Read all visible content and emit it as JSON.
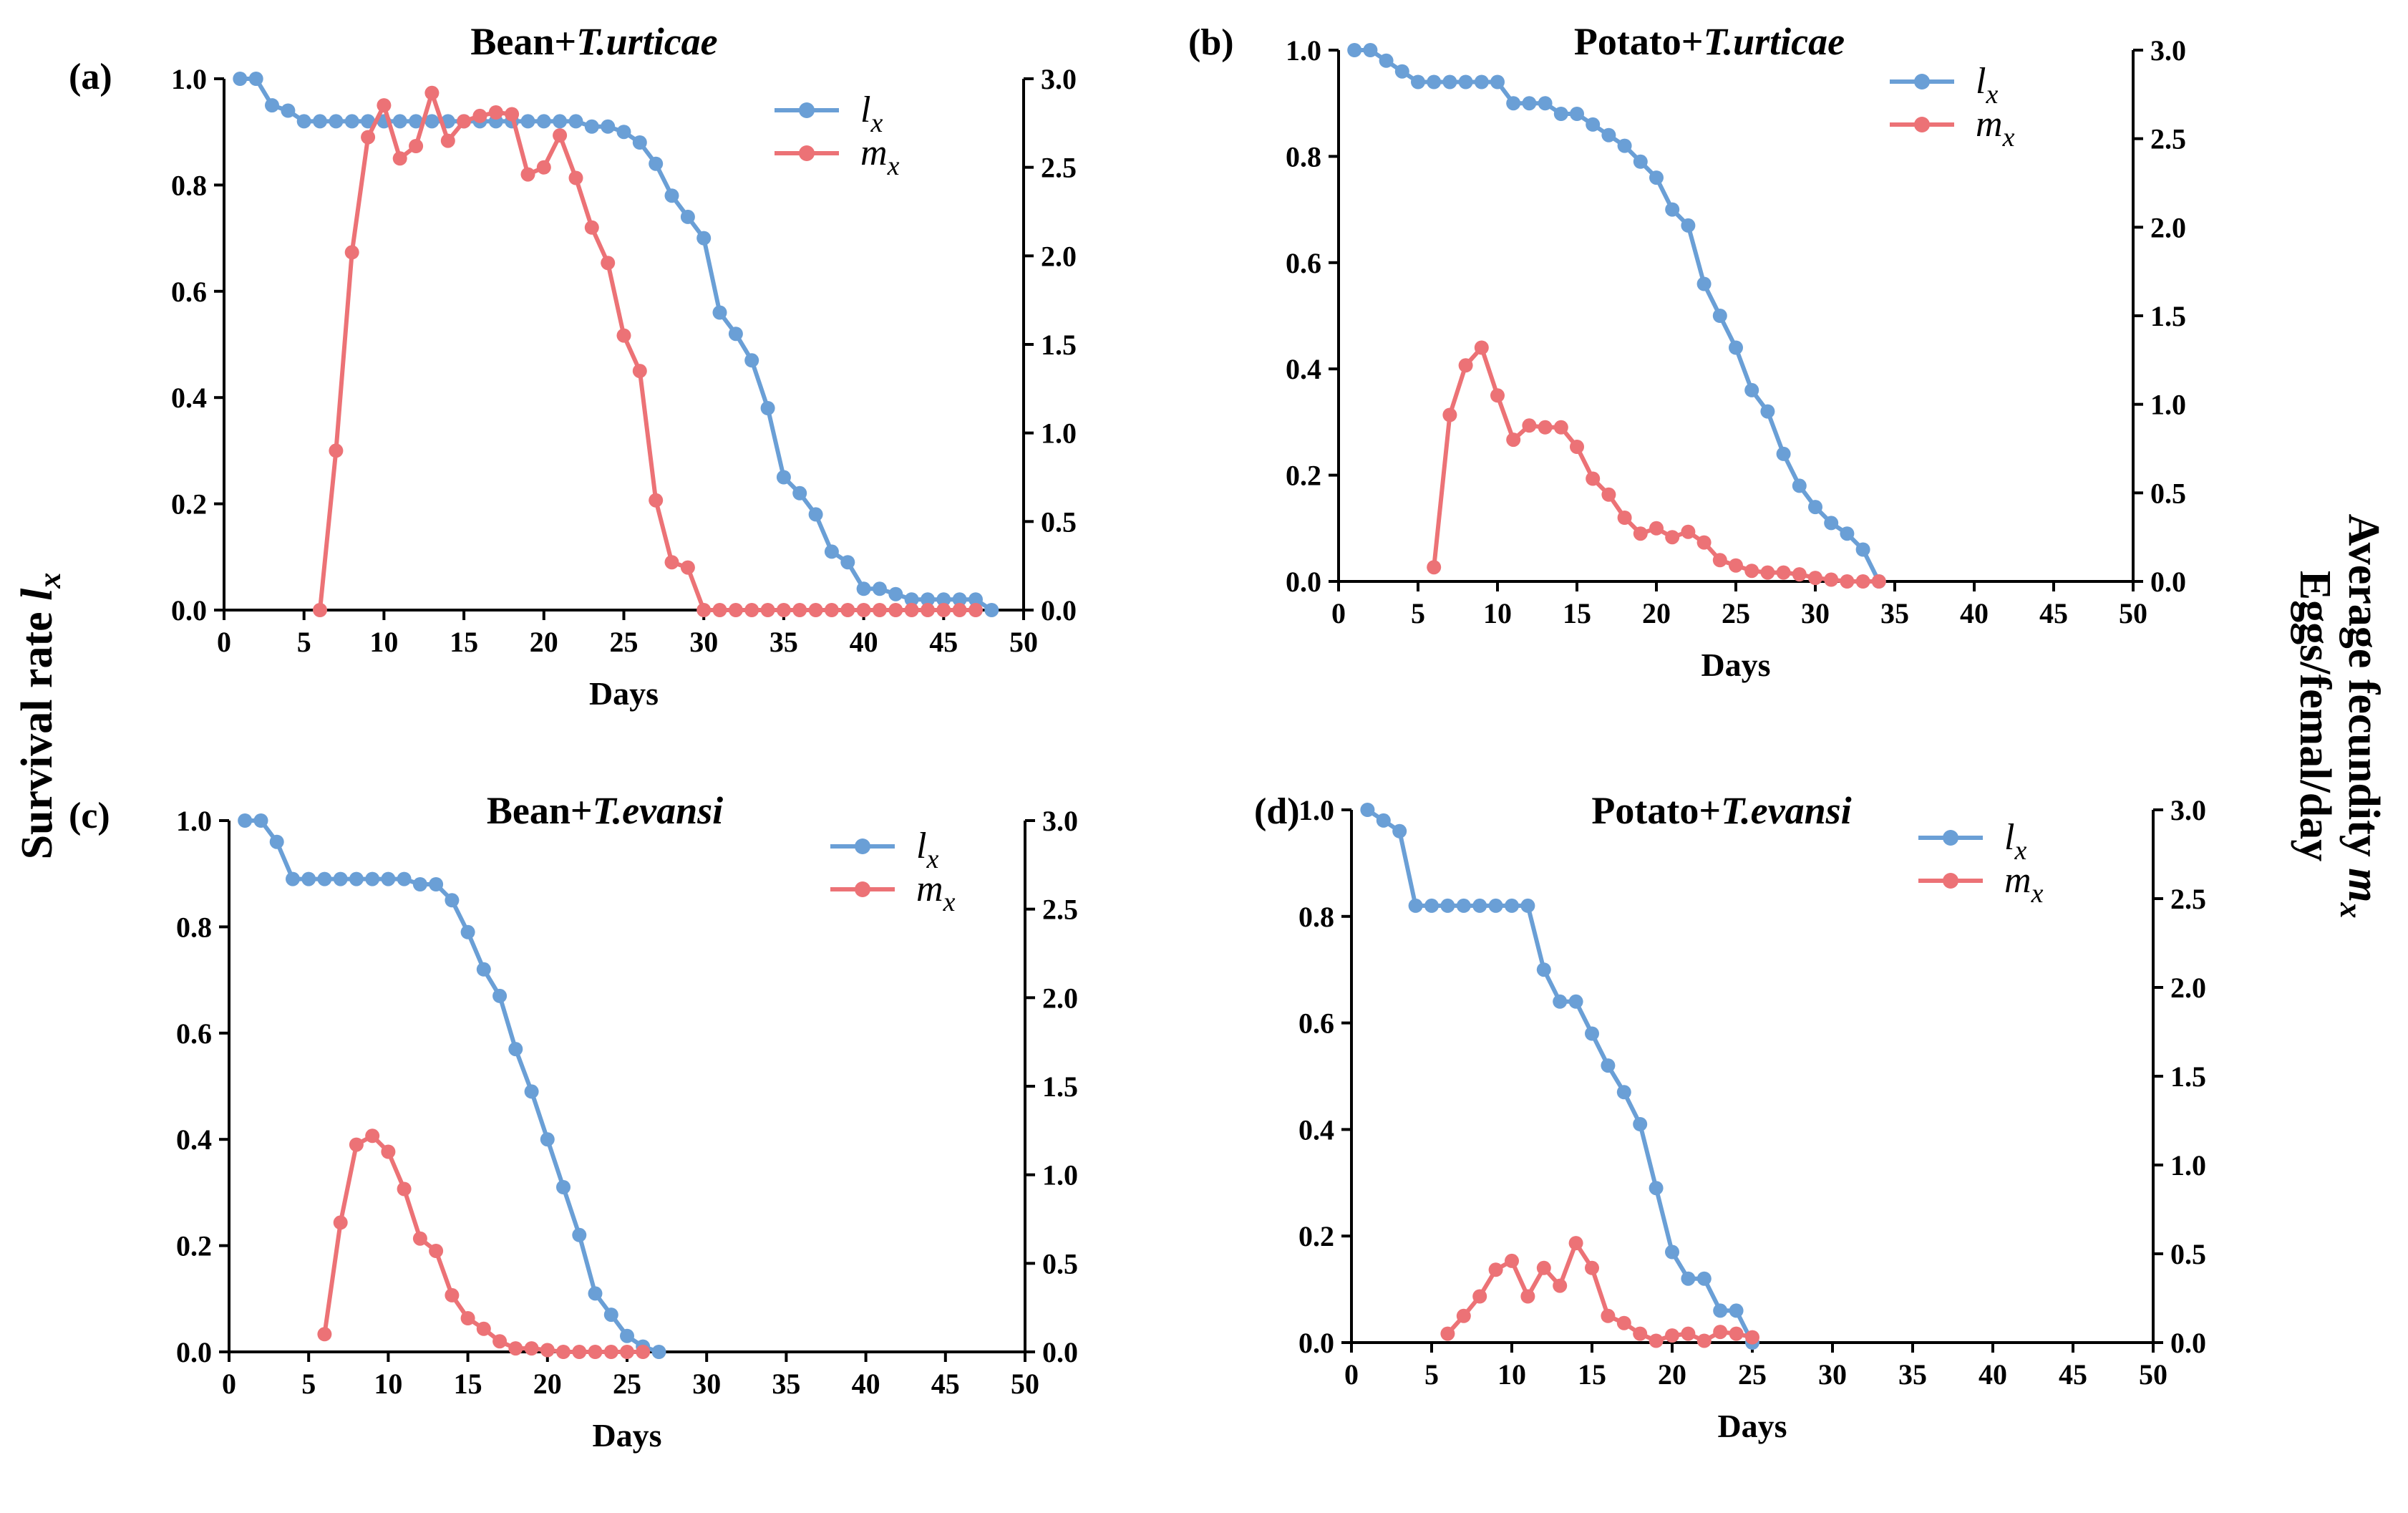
{
  "figure": {
    "left_axis_label": "Survival rate",
    "left_axis_symbol": "l",
    "left_axis_sub": "x",
    "right_axis_label_line1": "Average fecundity",
    "right_axis_symbol": "m",
    "right_axis_sub": "x",
    "right_axis_label_line2": "Eggs/femal/day"
  },
  "colors": {
    "lx": "#6a9fd6",
    "mx": "#ec7276"
  },
  "chart_data": [
    {
      "type": "line",
      "panel_label": "(a)",
      "title_plain": "Bean+",
      "title_italic": "T.urticae",
      "xlabel": "Days",
      "xlim": [
        0,
        50
      ],
      "xticks": [
        "0",
        "5",
        "10",
        "15",
        "20",
        "25",
        "30",
        "35",
        "40",
        "45",
        "50"
      ],
      "ylim_left": [
        0,
        1.0
      ],
      "yticks_left": [
        "0.0",
        "0.2",
        "0.4",
        "0.6",
        "0.8",
        "1.0"
      ],
      "ylim_right": [
        0,
        3.0
      ],
      "yticks_right": [
        "0.0",
        "0.5",
        "1.0",
        "1.5",
        "2.0",
        "2.5",
        "3.0"
      ],
      "legend": [
        {
          "symbol": "l",
          "sub": "x"
        },
        {
          "symbol": "m",
          "sub": "x"
        }
      ],
      "series": [
        {
          "name": "lx",
          "axis": "left",
          "x": [
            1,
            2,
            3,
            4,
            5,
            6,
            7,
            8,
            9,
            10,
            11,
            12,
            13,
            14,
            15,
            16,
            17,
            18,
            19,
            20,
            21,
            22,
            23,
            24,
            25,
            26,
            27,
            28,
            29,
            30,
            31,
            32,
            33,
            34,
            35,
            36,
            37,
            38,
            39,
            40,
            41,
            42,
            43,
            44,
            45,
            46,
            47,
            48
          ],
          "y": [
            1.0,
            1.0,
            0.95,
            0.94,
            0.92,
            0.92,
            0.92,
            0.92,
            0.92,
            0.92,
            0.92,
            0.92,
            0.92,
            0.92,
            0.92,
            0.92,
            0.92,
            0.92,
            0.92,
            0.92,
            0.92,
            0.92,
            0.91,
            0.91,
            0.9,
            0.88,
            0.84,
            0.78,
            0.74,
            0.7,
            0.56,
            0.52,
            0.47,
            0.38,
            0.25,
            0.22,
            0.18,
            0.11,
            0.09,
            0.04,
            0.04,
            0.03,
            0.02,
            0.02,
            0.02,
            0.02,
            0.02,
            0.0
          ]
        },
        {
          "name": "mx",
          "axis": "right",
          "x": [
            6,
            7,
            8,
            9,
            10,
            11,
            12,
            13,
            14,
            15,
            16,
            17,
            18,
            19,
            20,
            21,
            22,
            23,
            24,
            25,
            26,
            27,
            28,
            29,
            30,
            31,
            32,
            33,
            34,
            35,
            36,
            37,
            38,
            39,
            40,
            41,
            42,
            43,
            44,
            45,
            46,
            47
          ],
          "y": [
            0.0,
            0.9,
            2.02,
            2.67,
            2.85,
            2.55,
            2.62,
            2.92,
            2.65,
            2.76,
            2.79,
            2.81,
            2.8,
            2.46,
            2.5,
            2.68,
            2.44,
            2.16,
            1.96,
            1.55,
            1.35,
            0.62,
            0.27,
            0.24,
            0.0,
            0.0,
            0.0,
            0.0,
            0.0,
            0.0,
            0.0,
            0.0,
            0.0,
            0.0,
            0.0,
            0.0,
            0.0,
            0.0,
            0.0,
            0.0,
            0.0,
            0.0
          ]
        }
      ]
    },
    {
      "type": "line",
      "panel_label": "(b)",
      "title_plain": "Potato+",
      "title_italic": "T.urticae",
      "xlabel": "Days",
      "xlim": [
        0,
        50
      ],
      "xticks": [
        "0",
        "5",
        "10",
        "15",
        "20",
        "25",
        "30",
        "35",
        "40",
        "45",
        "50"
      ],
      "ylim_left": [
        0,
        1.0
      ],
      "yticks_left": [
        "0.0",
        "0.2",
        "0.4",
        "0.6",
        "0.8",
        "1.0"
      ],
      "ylim_right": [
        0,
        3.0
      ],
      "yticks_right": [
        "0.0",
        "0.5",
        "1.0",
        "1.5",
        "2.0",
        "2.5",
        "3.0"
      ],
      "legend": [
        {
          "symbol": "l",
          "sub": "x"
        },
        {
          "symbol": "m",
          "sub": "x"
        }
      ],
      "series": [
        {
          "name": "lx",
          "axis": "left",
          "x": [
            1,
            2,
            3,
            4,
            5,
            6,
            7,
            8,
            9,
            10,
            11,
            12,
            13,
            14,
            15,
            16,
            17,
            18,
            19,
            20,
            21,
            22,
            23,
            24,
            25,
            26,
            27,
            28,
            29,
            30,
            31,
            32,
            33,
            34
          ],
          "y": [
            1.0,
            1.0,
            0.98,
            0.96,
            0.94,
            0.94,
            0.94,
            0.94,
            0.94,
            0.94,
            0.9,
            0.9,
            0.9,
            0.88,
            0.88,
            0.86,
            0.84,
            0.82,
            0.79,
            0.76,
            0.7,
            0.67,
            0.56,
            0.5,
            0.44,
            0.36,
            0.32,
            0.24,
            0.18,
            0.14,
            0.11,
            0.09,
            0.06,
            0.0
          ]
        },
        {
          "name": "mx",
          "axis": "right",
          "x": [
            6,
            7,
            8,
            9,
            10,
            11,
            12,
            13,
            14,
            15,
            16,
            17,
            18,
            19,
            20,
            21,
            22,
            23,
            24,
            25,
            26,
            27,
            28,
            29,
            30,
            31,
            32,
            33,
            34
          ],
          "y": [
            0.08,
            0.94,
            1.22,
            1.32,
            1.05,
            0.8,
            0.88,
            0.87,
            0.87,
            0.76,
            0.58,
            0.49,
            0.36,
            0.27,
            0.3,
            0.25,
            0.28,
            0.22,
            0.12,
            0.09,
            0.06,
            0.05,
            0.05,
            0.04,
            0.02,
            0.01,
            0.0,
            0.0,
            0.0
          ]
        }
      ]
    },
    {
      "type": "line",
      "panel_label": "(c)",
      "title_plain": "Bean+",
      "title_italic": "T.evansi",
      "xlabel": "Days",
      "xlim": [
        0,
        50
      ],
      "xticks": [
        "0",
        "5",
        "10",
        "15",
        "20",
        "25",
        "30",
        "35",
        "40",
        "45",
        "50"
      ],
      "ylim_left": [
        0,
        1.0
      ],
      "yticks_left": [
        "0.0",
        "0.2",
        "0.4",
        "0.6",
        "0.8",
        "1.0"
      ],
      "ylim_right": [
        0,
        3.0
      ],
      "yticks_right": [
        "0.0",
        "0.5",
        "1.0",
        "1.5",
        "2.0",
        "2.5",
        "3.0"
      ],
      "legend": [
        {
          "symbol": "l",
          "sub": "x"
        },
        {
          "symbol": "m",
          "sub": "x"
        }
      ],
      "series": [
        {
          "name": "lx",
          "axis": "left",
          "x": [
            1,
            2,
            3,
            4,
            5,
            6,
            7,
            8,
            9,
            10,
            11,
            12,
            13,
            14,
            15,
            16,
            17,
            18,
            19,
            20,
            21,
            22,
            23,
            24,
            25,
            26,
            27
          ],
          "y": [
            1.0,
            1.0,
            0.96,
            0.89,
            0.89,
            0.89,
            0.89,
            0.89,
            0.89,
            0.89,
            0.89,
            0.88,
            0.88,
            0.85,
            0.79,
            0.72,
            0.67,
            0.57,
            0.49,
            0.4,
            0.31,
            0.22,
            0.11,
            0.07,
            0.03,
            0.01,
            0.0
          ]
        },
        {
          "name": "mx",
          "axis": "right",
          "x": [
            6,
            7,
            8,
            9,
            10,
            11,
            12,
            13,
            14,
            15,
            16,
            17,
            18,
            19,
            20,
            21,
            22,
            23,
            24,
            25,
            26
          ],
          "y": [
            0.1,
            0.73,
            1.17,
            1.22,
            1.13,
            0.92,
            0.64,
            0.57,
            0.32,
            0.19,
            0.13,
            0.06,
            0.02,
            0.02,
            0.01,
            0.0,
            0.0,
            0.0,
            0.0,
            0.0,
            0.0
          ]
        }
      ]
    },
    {
      "type": "line",
      "panel_label": "(d)",
      "title_plain": "Potato+",
      "title_italic": "T.evansi",
      "xlabel": "Days",
      "xlim": [
        0,
        50
      ],
      "xticks": [
        "0",
        "5",
        "10",
        "15",
        "20",
        "25",
        "30",
        "35",
        "40",
        "45",
        "50"
      ],
      "ylim_left": [
        0,
        1.0
      ],
      "yticks_left": [
        "0.0",
        "0.2",
        "0.4",
        "0.6",
        "0.8",
        "1.0"
      ],
      "ylim_right": [
        0,
        3.0
      ],
      "yticks_right": [
        "0.0",
        "0.5",
        "1.0",
        "1.5",
        "2.0",
        "2.5",
        "3.0"
      ],
      "legend": [
        {
          "symbol": "l",
          "sub": "x"
        },
        {
          "symbol": "m",
          "sub": "x"
        }
      ],
      "series": [
        {
          "name": "lx",
          "axis": "left",
          "x": [
            1,
            2,
            3,
            4,
            5,
            6,
            7,
            8,
            9,
            10,
            11,
            12,
            13,
            14,
            15,
            16,
            17,
            18,
            19,
            20,
            21,
            22,
            23,
            24,
            25
          ],
          "y": [
            1.0,
            0.98,
            0.96,
            0.82,
            0.82,
            0.82,
            0.82,
            0.82,
            0.82,
            0.82,
            0.82,
            0.7,
            0.64,
            0.64,
            0.58,
            0.52,
            0.47,
            0.41,
            0.29,
            0.17,
            0.12,
            0.12,
            0.06,
            0.06,
            0.0
          ]
        },
        {
          "name": "mx",
          "axis": "right",
          "x": [
            6,
            7,
            8,
            9,
            10,
            11,
            12,
            13,
            14,
            15,
            16,
            17,
            18,
            19,
            20,
            21,
            22,
            23,
            24,
            25
          ],
          "y": [
            0.05,
            0.15,
            0.26,
            0.41,
            0.46,
            0.26,
            0.42,
            0.32,
            0.56,
            0.42,
            0.15,
            0.11,
            0.05,
            0.01,
            0.04,
            0.05,
            0.01,
            0.06,
            0.05,
            0.03
          ]
        }
      ]
    }
  ]
}
